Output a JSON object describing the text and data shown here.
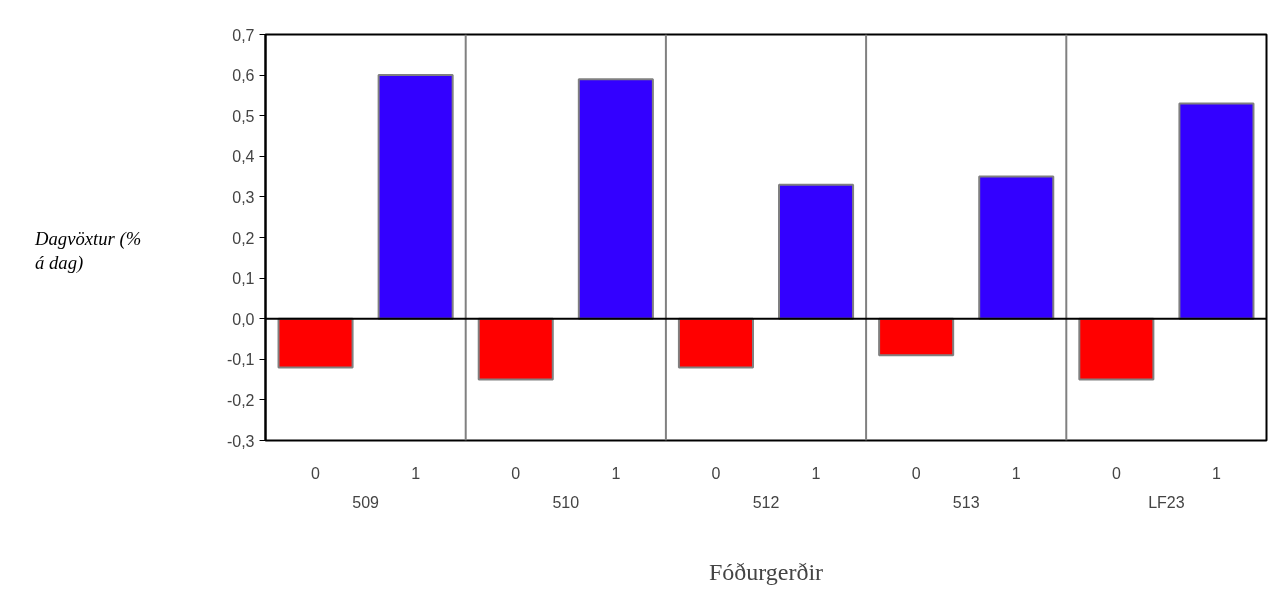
{
  "chart_data": {
    "type": "bar",
    "xlabel": "Fóðurgerðir",
    "ylabel": "Dagvöxtur (% á dag)",
    "categories": [
      "0",
      "1",
      "0",
      "1",
      "0",
      "1",
      "0",
      "1",
      "0",
      "1"
    ],
    "values": [
      -0.12,
      0.6,
      -0.15,
      0.59,
      -0.12,
      0.33,
      -0.09,
      0.35,
      -0.15,
      0.53
    ],
    "colors": [
      "#ff0000",
      "#3300ff",
      "#ff0000",
      "#3300ff",
      "#ff0000",
      "#3300ff",
      "#ff0000",
      "#3300ff",
      "#ff0000",
      "#3300ff"
    ],
    "annotations": [
      "509",
      "510",
      "512",
      "513",
      "LF23"
    ],
    "ylim": [
      -0.3,
      0.7
    ],
    "yticks": [
      {
        "value": -0.3,
        "label": "-0,3"
      },
      {
        "value": -0.2,
        "label": "-0,2"
      },
      {
        "value": -0.1,
        "label": "-0,1"
      },
      {
        "value": 0,
        "label": "0,0"
      },
      {
        "value": 0.1,
        "label": "0,1"
      },
      {
        "value": 0.2,
        "label": "0,2"
      },
      {
        "value": 0.3,
        "label": "0,3"
      },
      {
        "value": 0.4,
        "label": "0,4"
      },
      {
        "value": 0.5,
        "label": "0,5"
      },
      {
        "value": 0.6,
        "label": "0,6"
      },
      {
        "value": 0.7,
        "label": "0,7"
      }
    ],
    "grid": false
  }
}
